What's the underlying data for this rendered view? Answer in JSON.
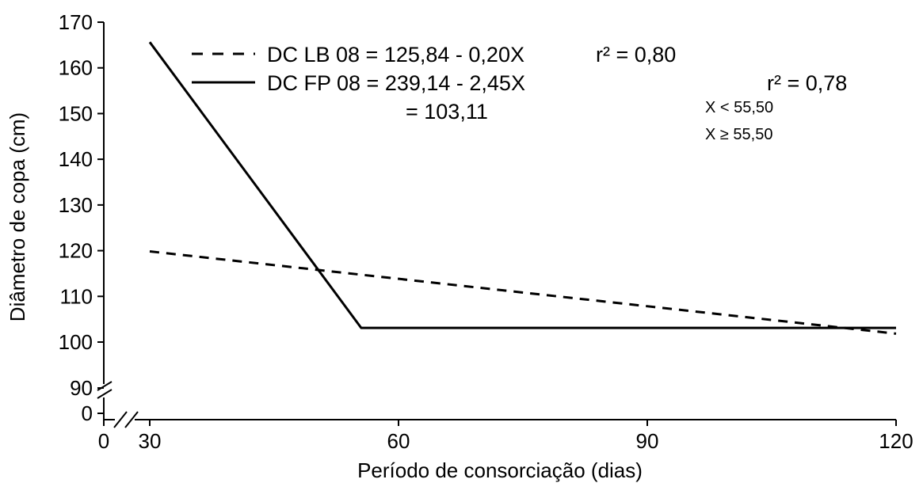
{
  "chart_data": {
    "type": "line",
    "xlabel": "Período de consorciação (dias)",
    "ylabel": "Diâmetro de copa (cm)",
    "xlim": [
      30,
      120
    ],
    "ylim": [
      100,
      170
    ],
    "x_ticks": [
      "0",
      "30",
      "60",
      "90",
      "120"
    ],
    "y_ticks": [
      "0",
      "90",
      "100",
      "110",
      "120",
      "130",
      "140",
      "150",
      "160",
      "170"
    ],
    "axis_break": true,
    "grid": false,
    "legend_position": "top",
    "series": [
      {
        "name": "DC LB 08 = 125,84 - 0,20X",
        "style": "dashed",
        "r2": "r² = 0,80",
        "x": [
          30,
          120
        ],
        "y": [
          119.84,
          101.84
        ]
      },
      {
        "name": "DC FP 08 = 239,14 - 2,45X",
        "style": "solid",
        "r2": "r² = 0,78",
        "plateau": "= 103,11",
        "conditions": [
          "X < 55,50",
          "X ≥ 55,50"
        ],
        "x": [
          30,
          55.5,
          120
        ],
        "y": [
          165.64,
          103.11,
          103.11
        ]
      }
    ]
  }
}
